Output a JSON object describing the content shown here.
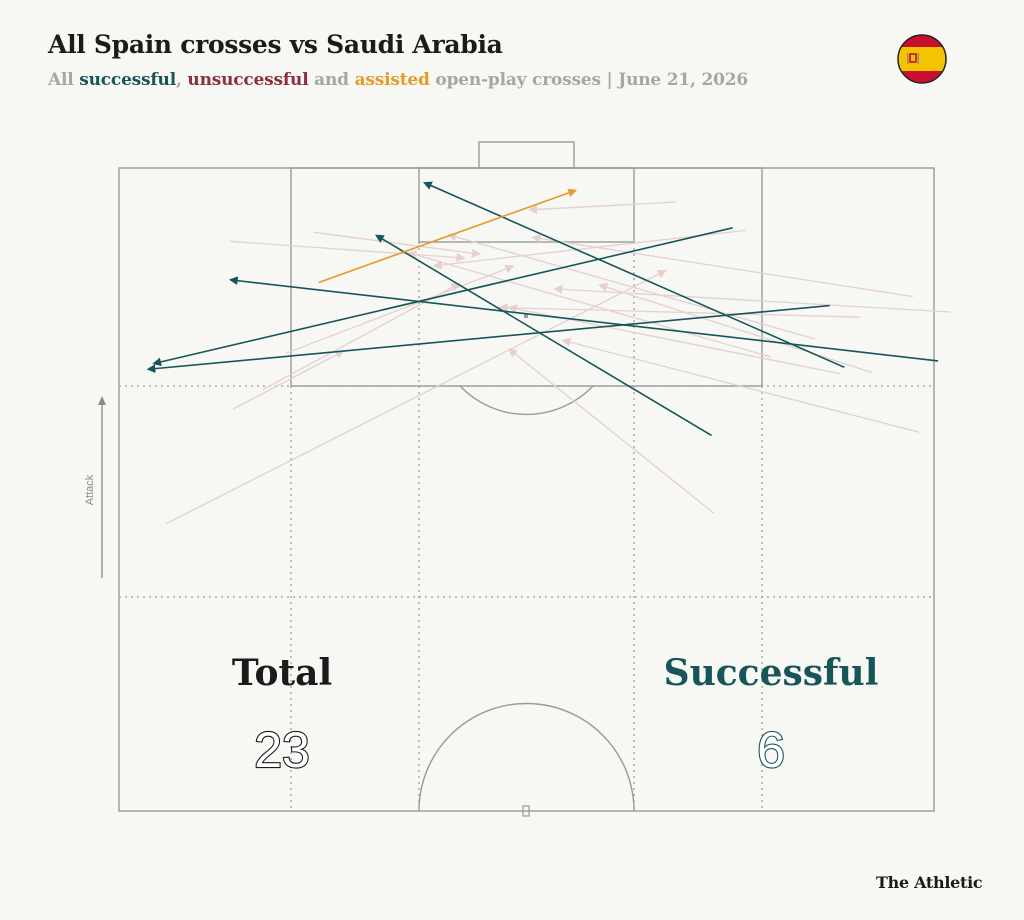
{
  "header": {
    "title": "All Spain crosses vs Saudi Arabia",
    "subtitle_parts": {
      "prefix": "All ",
      "successful": "successful",
      "sep1": ", ",
      "unsuccessful": "unsuccessful",
      "sep2": " and ",
      "assisted": "assisted",
      "suffix": " open-play crosses | June 21, 2026"
    }
  },
  "flag": {
    "name": "spain-flag-icon",
    "colors": {
      "red": "#c8102e",
      "yellow": "#f5c400",
      "outline": "#222222"
    }
  },
  "direction_label": "Attack",
  "colors": {
    "successful": "#16565a",
    "unsuccessful": "#e6cfcf",
    "assisted": "#e79a27",
    "pitch_lines": "#9a9a9a",
    "background": "#f7f7f4"
  },
  "stats": {
    "total_label": "Total",
    "total_value": "23",
    "successful_label": "Successful",
    "successful_value": "6"
  },
  "brand": "The Athletic",
  "chart_data": {
    "type": "pitch-crosses",
    "units": "pitch coordinates: x 0-100 across the width (left to right), y 0-100 length from the attacked goal line",
    "total": 23,
    "successful_count": 6,
    "crosses": [
      {
        "outcome": "assisted",
        "x1": 24.5,
        "y1": 17.8,
        "x2": 56.0,
        "y2": 3.5
      },
      {
        "outcome": "successful",
        "x1": 89.0,
        "y1": 31.0,
        "x2": 37.5,
        "y2": 2.3
      },
      {
        "outcome": "successful",
        "x1": 72.7,
        "y1": 41.6,
        "x2": 31.6,
        "y2": 10.5
      },
      {
        "outcome": "successful",
        "x1": 75.3,
        "y1": 9.3,
        "x2": 4.3,
        "y2": 30.4
      },
      {
        "outcome": "successful",
        "x1": 100.5,
        "y1": 30.0,
        "x2": 13.7,
        "y2": 17.4
      },
      {
        "outcome": "successful",
        "x1": 87.2,
        "y1": 21.4,
        "x2": 3.6,
        "y2": 31.3
      },
      {
        "outcome": "unsuccessful",
        "x1": 5.8,
        "y1": 55.3,
        "x2": 67.0,
        "y2": 16.0
      },
      {
        "outcome": "unsuccessful",
        "x1": 88.5,
        "y1": 32.0,
        "x2": 47.9,
        "y2": 21.7
      },
      {
        "outcome": "unsuccessful",
        "x1": 92.4,
        "y1": 31.8,
        "x2": 59.0,
        "y2": 18.2
      },
      {
        "outcome": "unsuccessful",
        "x1": 97.4,
        "y1": 20.0,
        "x2": 50.8,
        "y2": 10.8
      },
      {
        "outcome": "unsuccessful",
        "x1": 102.0,
        "y1": 22.4,
        "x2": 53.5,
        "y2": 18.8
      },
      {
        "outcome": "unsuccessful",
        "x1": 98.2,
        "y1": 41.1,
        "x2": 54.5,
        "y2": 26.8
      },
      {
        "outcome": "unsuccessful",
        "x1": 73.0,
        "y1": 53.7,
        "x2": 47.9,
        "y2": 28.2
      },
      {
        "outcome": "unsuccessful",
        "x1": 14.0,
        "y1": 37.5,
        "x2": 27.5,
        "y2": 28.5
      },
      {
        "outcome": "unsuccessful",
        "x1": 17.6,
        "y1": 34.5,
        "x2": 41.7,
        "y2": 18.0
      },
      {
        "outcome": "unsuccessful",
        "x1": 13.6,
        "y1": 11.4,
        "x2": 42.3,
        "y2": 14.0
      },
      {
        "outcome": "unsuccessful",
        "x1": 23.9,
        "y1": 10.0,
        "x2": 44.2,
        "y2": 13.4
      },
      {
        "outcome": "unsuccessful",
        "x1": 68.3,
        "y1": 5.3,
        "x2": 50.4,
        "y2": 6.5
      },
      {
        "outcome": "unsuccessful",
        "x1": 76.9,
        "y1": 9.7,
        "x2": 38.7,
        "y2": 15.2
      },
      {
        "outcome": "unsuccessful",
        "x1": 85.4,
        "y1": 26.6,
        "x2": 40.5,
        "y2": 10.4
      },
      {
        "outcome": "unsuccessful",
        "x1": 91.0,
        "y1": 23.2,
        "x2": 46.8,
        "y2": 21.7
      },
      {
        "outcome": "unsuccessful",
        "x1": 80.0,
        "y1": 29.4,
        "x2": 35.6,
        "y2": 13.2
      },
      {
        "outcome": "unsuccessful",
        "x1": 20.5,
        "y1": 28.8,
        "x2": 48.3,
        "y2": 15.3
      }
    ]
  }
}
